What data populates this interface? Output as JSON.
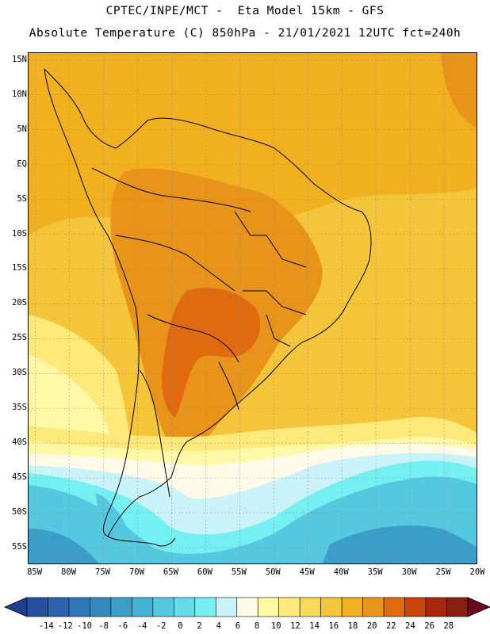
{
  "header": {
    "line1": "CPTEC/INPE/MCT -  Eta Model 15km - GFS",
    "line2": "Absolute Temperature (C) 850hPa - 21/01/2021 12UTC fct=240h"
  },
  "axes": {
    "lat_labels": [
      "15N",
      "10N",
      "5N",
      "EQ",
      "5S",
      "10S",
      "15S",
      "20S",
      "25S",
      "30S",
      "35S",
      "40S",
      "45S",
      "50S",
      "55S"
    ],
    "lat_values": [
      15,
      10,
      5,
      0,
      -5,
      -10,
      -15,
      -20,
      -25,
      -30,
      -35,
      -40,
      -45,
      -50,
      -55
    ],
    "lon_labels": [
      "85W",
      "80W",
      "75W",
      "70W",
      "65W",
      "60W",
      "55W",
      "50W",
      "45W",
      "40W",
      "35W",
      "30W",
      "25W",
      "20W"
    ],
    "lon_values": [
      -85,
      -80,
      -75,
      -70,
      -65,
      -60,
      -55,
      -50,
      -45,
      -40,
      -35,
      -30,
      -25,
      -20
    ],
    "lon_range": [
      -86,
      -20
    ],
    "lat_range": [
      -57.5,
      16
    ]
  },
  "colorbar": {
    "labels": [
      "-14",
      "-12",
      "-10",
      "-8",
      "-6",
      "-4",
      "-2",
      "0",
      "2",
      "4",
      "6",
      "8",
      "10",
      "12",
      "14",
      "16",
      "18",
      "20",
      "22",
      "24",
      "26",
      "28"
    ],
    "colors": [
      "#1d3f8f",
      "#25509e",
      "#2c63b0",
      "#3176b8",
      "#3589bf",
      "#3a9ec8",
      "#43b3d4",
      "#55c8e0",
      "#66dcea",
      "#75f0f2",
      "#c9f3f8",
      "#fffbe8",
      "#fff8a6",
      "#fdea7a",
      "#f9d95a",
      "#f4c43b",
      "#f0b020",
      "#e8931a",
      "#e06a10",
      "#c9440c",
      "#a8260b",
      "#862010",
      "#68091c"
    ]
  },
  "regions": [
    {
      "name": "southern-ocean-deep",
      "color": "#3a9ec8"
    },
    {
      "name": "southern-ocean-mid",
      "color": "#55c8e0"
    },
    {
      "name": "southern-ocean-light",
      "color": "#75f0f2"
    },
    {
      "name": "pale-band",
      "color": "#c9f3f8"
    },
    {
      "name": "cream-band",
      "color": "#fffbe8"
    },
    {
      "name": "light-yellow-band",
      "color": "#fff8a6"
    },
    {
      "name": "yellow-band",
      "color": "#fdea7a"
    },
    {
      "name": "gold-band",
      "color": "#f4c43b"
    },
    {
      "name": "tropical-orange",
      "color": "#f0b020"
    },
    {
      "name": "hot-interior",
      "color": "#e8931a"
    },
    {
      "name": "hottest-core",
      "color": "#e06a10"
    }
  ]
}
